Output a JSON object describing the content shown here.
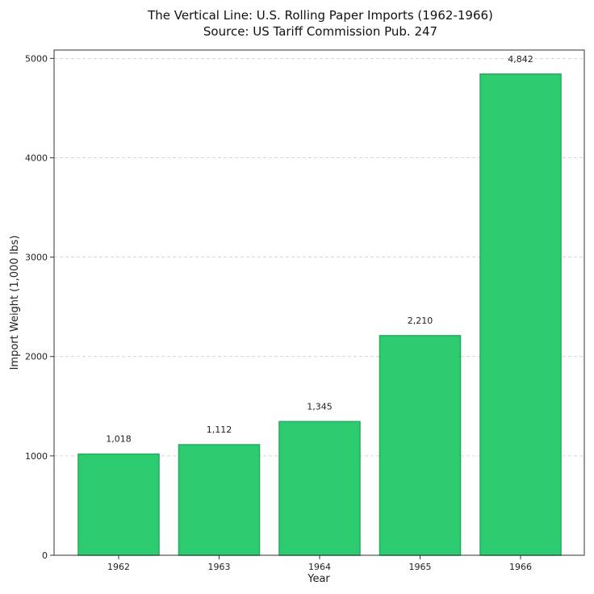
{
  "colors": {
    "bar_fill": "#2ecc71",
    "bar_edge": "#27ae60"
  },
  "chart_data": {
    "type": "bar",
    "title": "The Vertical Line: U.S. Rolling Paper Imports (1962-1966)",
    "subtitle": "Source: US Tariff Commission Pub. 247",
    "xlabel": "Year",
    "ylabel": "Import Weight (1,000 lbs)",
    "categories": [
      "1962",
      "1963",
      "1964",
      "1965",
      "1966"
    ],
    "values": [
      1018,
      1112,
      1345,
      2210,
      4842
    ],
    "value_labels": [
      "1,018",
      "1,112",
      "1,345",
      "2,210",
      "4,842"
    ],
    "ylim": [
      0,
      5084
    ],
    "yticks": [
      0,
      1000,
      2000,
      3000,
      4000,
      5000
    ],
    "grid": "y-dashed",
    "legend": "none"
  }
}
